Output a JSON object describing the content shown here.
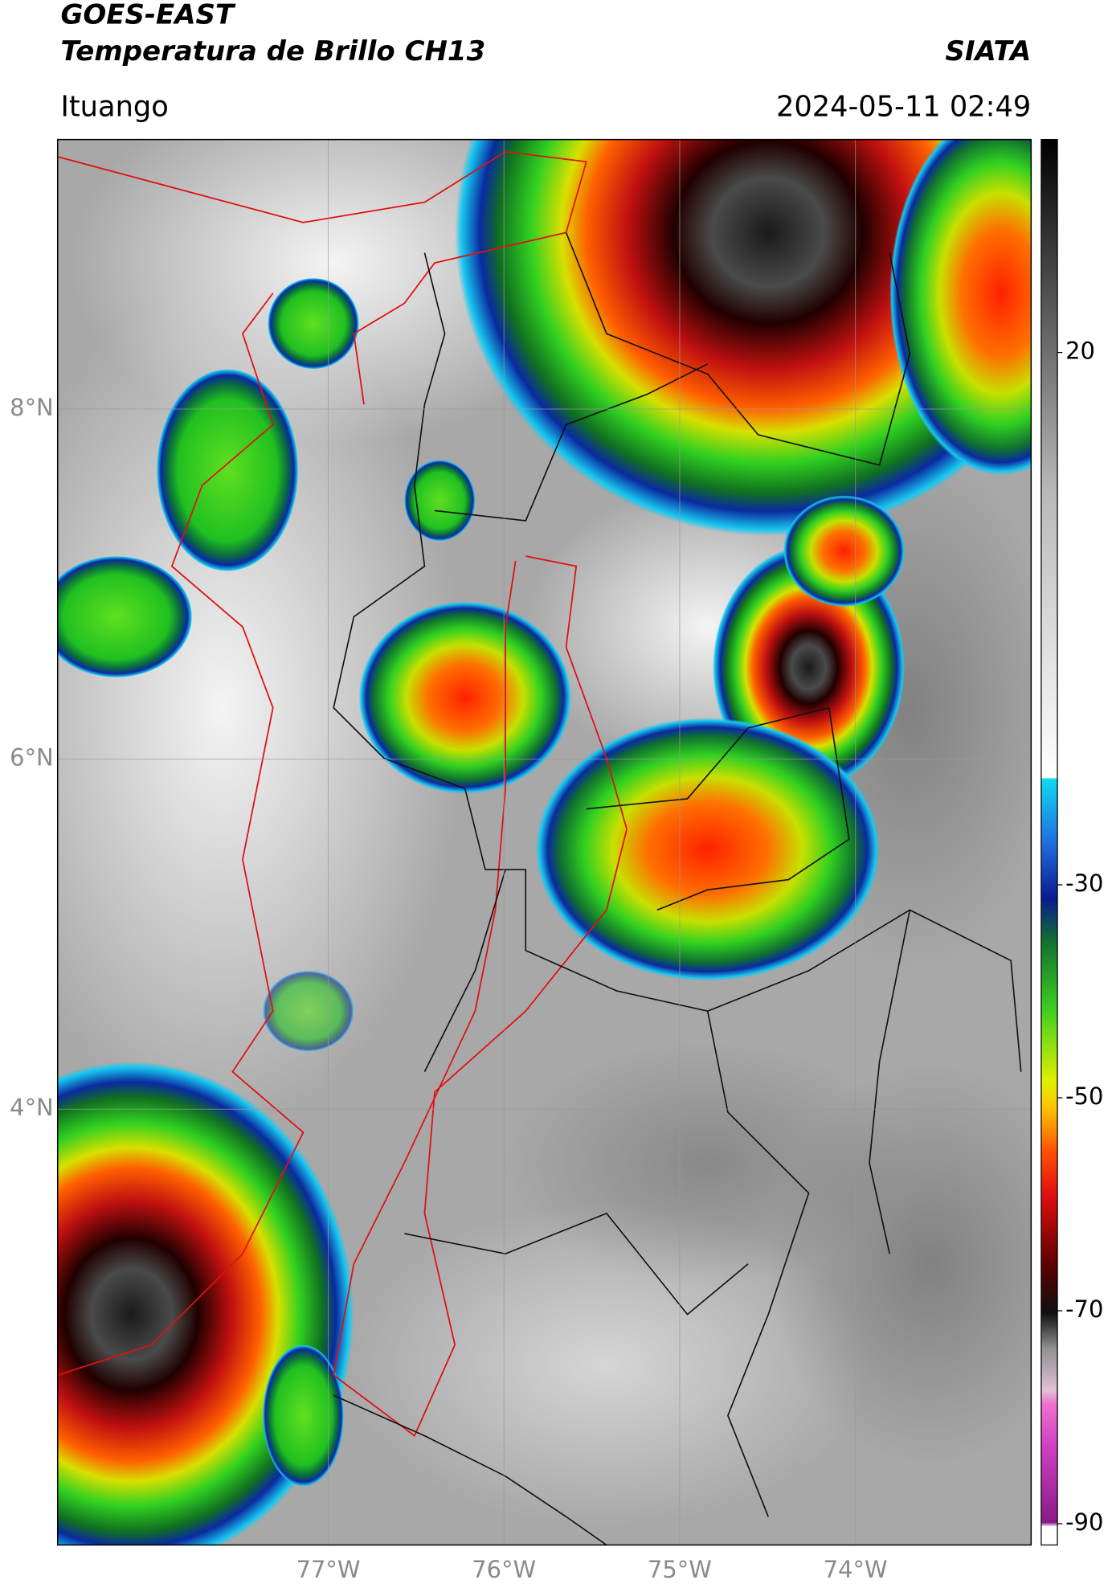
{
  "header": {
    "title": "GOES-EAST",
    "subtitle": "Temperatura de Brillo CH13",
    "source": "SIATA",
    "location": "Ituango",
    "datetime": "2024-05-11 02:49"
  },
  "map": {
    "xlim": [
      -78.54,
      -73.0
    ],
    "ylim": [
      1.51,
      9.54
    ],
    "xticks": [
      {
        "value": -77,
        "label": "77°W"
      },
      {
        "value": -76,
        "label": "76°W"
      },
      {
        "value": -75,
        "label": "75°W"
      },
      {
        "value": -74,
        "label": "74°W"
      }
    ],
    "yticks": [
      {
        "value": 8,
        "label": "8°N"
      },
      {
        "value": 6,
        "label": "6°N"
      },
      {
        "value": 4,
        "label": "4°N"
      }
    ]
  },
  "colorbar": {
    "lim": [
      -92,
      40
    ],
    "ticks": [
      20,
      -30,
      -50,
      -70,
      -90
    ]
  }
}
